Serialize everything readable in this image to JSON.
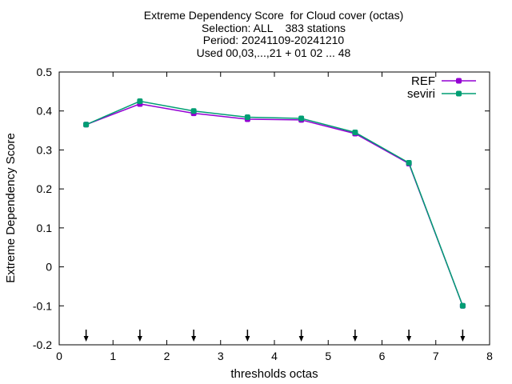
{
  "chart_data": {
    "type": "line",
    "title_lines": [
      "Extreme Dependency Score  for Cloud cover (octas)",
      "Selection: ALL    383 stations",
      "Period: 20241109-20241210",
      "Used 00,03,...,21 + 01 02 ... 48"
    ],
    "xlabel": "thresholds octas",
    "ylabel": "Extreme Dependency Score",
    "xlim": [
      0,
      8
    ],
    "ylim": [
      -0.2,
      0.5
    ],
    "xticks": [
      "0",
      "1",
      "2",
      "3",
      "4",
      "5",
      "6",
      "7",
      "8"
    ],
    "yticks": [
      "-0.2",
      "-0.1",
      "0",
      "0.1",
      "0.2",
      "0.3",
      "0.4",
      "0.5"
    ],
    "x": [
      0.5,
      1.5,
      2.5,
      3.5,
      4.5,
      5.5,
      6.5,
      7.5
    ],
    "series": [
      {
        "name": "REF",
        "color": "#9400d3",
        "values": [
          0.365,
          0.418,
          0.394,
          0.379,
          0.377,
          0.342,
          0.265,
          -0.1
        ]
      },
      {
        "name": "seviri",
        "color": "#009e73",
        "values": [
          0.365,
          0.425,
          0.4,
          0.384,
          0.381,
          0.345,
          0.267,
          -0.1
        ]
      }
    ],
    "arrow_markers_x": [
      0.5,
      1.5,
      2.5,
      3.5,
      4.5,
      5.5,
      6.5,
      7.5
    ],
    "grid": false,
    "legend_position": "top-right"
  }
}
